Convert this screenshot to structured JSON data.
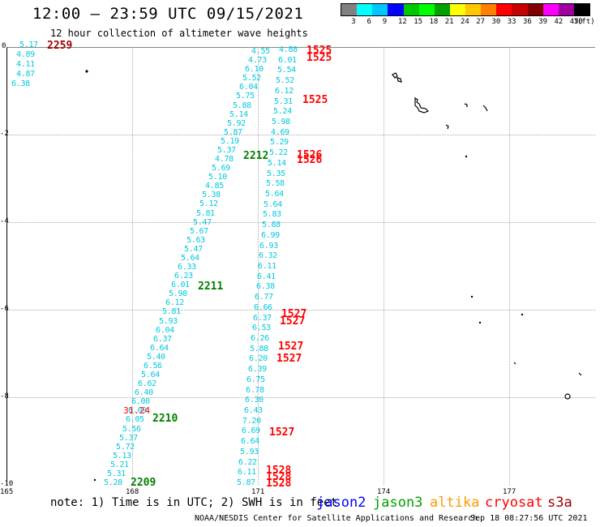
{
  "title": "12:00 – 23:59 UTC 09/15/2021",
  "subtitle": "12 hour collection of altimeter wave heights",
  "colorbar": {
    "colors": [
      "#808080",
      "#00ffff",
      "#00c8ff",
      "#0000ff",
      "#00c800",
      "#00ff00",
      "#00a000",
      "#ffff00",
      "#ffc800",
      "#ff8000",
      "#ff0000",
      "#c80000",
      "#800000",
      "#ff00ff",
      "#a000a0",
      "#000000"
    ],
    "labels": [
      "3",
      "6",
      "9",
      "12",
      "15",
      "18",
      "21",
      "24",
      "27",
      "30",
      "33",
      "36",
      "39",
      "42",
      "45",
      "70",
      "(ft)"
    ]
  },
  "axes": {
    "y_labels": [
      "0",
      "-2",
      "-4",
      "-6",
      "-8",
      "-10"
    ],
    "x_labels": [
      "165",
      "168",
      "171",
      "174",
      "177"
    ]
  },
  "track_times": {
    "t2259": "2259",
    "t2212": "2212",
    "t2211": "2211",
    "t2210": "2210",
    "t2209": "2209",
    "t1525a": "1525",
    "t1525b": "1525",
    "t1525c": "1525",
    "t1526a": "1526",
    "t1526b": "1526",
    "t1527a": "1527",
    "t1527b": "1527",
    "t1527c": "1527",
    "t1527d": "1527",
    "t1527e": "1527",
    "t1528a": "1528",
    "t1528b": "1528",
    "t1528c": "1528",
    "anomaly": "31.24"
  },
  "wave_left": [
    "5.17",
    "4.89",
    "4.11",
    "4.87",
    "6.38"
  ],
  "wave_diag": [
    "4.55",
    "4.73",
    "6.10",
    "5.52",
    "6.04",
    "5.75",
    "5.88",
    "5.14",
    "5.92",
    "5.87",
    "5.19",
    "5.37",
    "4.78",
    "5.69",
    "5.10",
    "4.85",
    "5.38",
    "5.12",
    "5.81",
    "5.47",
    "5.67",
    "5.63",
    "5.47",
    "5.64",
    "6.33",
    "6.23",
    "6.01",
    "5.98",
    "6.12",
    "5.81",
    "5.93",
    "6.04",
    "6.37",
    "6.64",
    "5.40",
    "6.56",
    "5.64",
    "6.62",
    "6.40",
    "6.00",
    "6.09",
    "6.05",
    "5.56",
    "5.37",
    "5.72",
    "5.13",
    "5.21",
    "5.31",
    "5.28"
  ],
  "wave_right": [
    "4.88",
    "6.01",
    "5.54",
    "5.52",
    "6.12",
    "5.31",
    "5.24",
    "5.98",
    "4.69",
    "5.29",
    "5.22",
    "5.14",
    "5.35",
    "5.58",
    "5.64",
    "5.64",
    "5.83",
    "5.88",
    "6.99",
    "6.93",
    "6.32",
    "6.11",
    "6.41",
    "6.38",
    "6.77",
    "6.66",
    "6.37",
    "6.53",
    "6.26",
    "5.88",
    "6.20",
    "6.39",
    "6.75",
    "6.78",
    "6.30",
    "6.43",
    "7.20",
    "6.69",
    "6.64",
    "5.93",
    "6.22",
    "6.11",
    "5.87"
  ],
  "note": "note:  1) Time is in UTC;  2) SWH is in feet",
  "legend": [
    {
      "name": "jason2",
      "color": "#0000ff"
    },
    {
      "name": "jason3",
      "color": "#00a000"
    },
    {
      "name": "altika",
      "color": "#ff9900"
    },
    {
      "name": "cryosat",
      "color": "#ff0000"
    },
    {
      "name": "s3a",
      "color": "#a00000"
    }
  ],
  "credit": "NOAA/NESDIS Center for Satellite Applications and Research",
  "stamp": "Sep 18 08:27:56 UTC 2021"
}
